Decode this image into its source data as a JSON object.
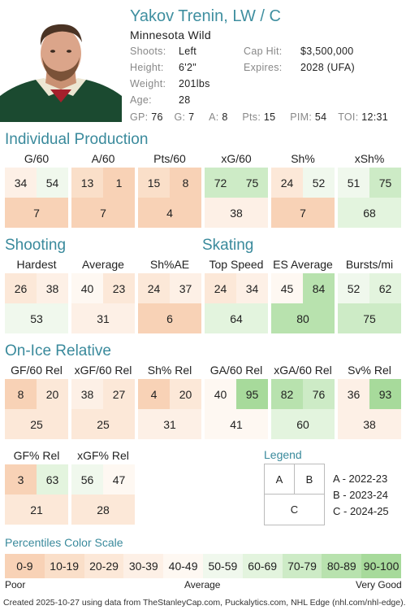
{
  "player": {
    "name": "Yakov Trenin, LW / C",
    "team": "Minnesota Wild",
    "shoots_label": "Shoots:",
    "shoots": "Left",
    "height_label": "Height:",
    "height": "6'2\"",
    "weight_label": "Weight:",
    "weight": "201lbs",
    "age_label": "Age:",
    "age": "28",
    "cap_label": "Cap Hit:",
    "cap": "$3,500,000",
    "expires_label": "Expires:",
    "expires": "2028 (UFA)",
    "gp_label": "GP:",
    "gp": "76",
    "g_label": "G:",
    "g": "7",
    "a_label": "A:",
    "a": "8",
    "pts_label": "Pts:",
    "pts": "15",
    "pim_label": "PIM:",
    "pim": "54",
    "toi_label": "TOI:",
    "toi": "12:31"
  },
  "sections": {
    "individual": "Individual Production",
    "shooting": "Shooting",
    "skating": "Skating",
    "onice": "On-Ice Relative"
  },
  "color_scale": [
    "#f8d2b6",
    "#fadfc9",
    "#fce8d8",
    "#fdf0e6",
    "#fef8f2",
    "#f0f8ed",
    "#e3f4de",
    "#cdebc6",
    "#b8e2ae",
    "#a7da9b"
  ],
  "metrics": [
    {
      "label": "G/60",
      "a": 34,
      "b": 54,
      "c": 7
    },
    {
      "label": "A/60",
      "a": 13,
      "b": 1,
      "c": 7
    },
    {
      "label": "Pts/60",
      "a": 15,
      "b": 8,
      "c": 4
    },
    {
      "label": "xG/60",
      "a": 72,
      "b": 75,
      "c": 38
    },
    {
      "label": "Sh%",
      "a": 24,
      "b": 52,
      "c": 7
    },
    {
      "label": "xSh%",
      "a": 51,
      "b": 75,
      "c": 68
    },
    {
      "label": "Hardest",
      "a": 26,
      "b": 38,
      "c": 53
    },
    {
      "label": "Average",
      "a": 40,
      "b": 23,
      "c": 31
    },
    {
      "label": "Sh%AE",
      "a": 24,
      "b": 37,
      "c": 6
    },
    {
      "label": "Top Speed",
      "a": 24,
      "b": 34,
      "c": 64
    },
    {
      "label": "ES Average",
      "a": 45,
      "b": 84,
      "c": 80
    },
    {
      "label": "Bursts/mi",
      "a": 52,
      "b": 62,
      "c": 75
    },
    {
      "label": "GF/60 Rel",
      "a": 8,
      "b": 20,
      "c": 25
    },
    {
      "label": "xGF/60 Rel",
      "a": 38,
      "b": 27,
      "c": 25
    },
    {
      "label": "Sh% Rel",
      "a": 4,
      "b": 20,
      "c": 31
    },
    {
      "label": "GA/60 Rel",
      "a": 40,
      "b": 95,
      "c": 41
    },
    {
      "label": "xGA/60 Rel",
      "a": 82,
      "b": 76,
      "c": 60
    },
    {
      "label": "Sv% Rel",
      "a": 36,
      "b": 93,
      "c": 38
    },
    {
      "label": "GF% Rel",
      "a": 3,
      "b": 63,
      "c": 21
    },
    {
      "label": "xGF% Rel",
      "a": 56,
      "b": 47,
      "c": 28
    }
  ],
  "legend": {
    "title": "Legend",
    "box_a": "A",
    "box_b": "B",
    "box_c": "C",
    "line_a": "A - 2022-23",
    "line_b": "B - 2023-24",
    "line_c": "C - 2024-25"
  },
  "scale": {
    "title": "Percentiles Color Scale",
    "bins": [
      "0-9",
      "10-19",
      "20-29",
      "30-39",
      "40-49",
      "50-59",
      "60-69",
      "70-79",
      "80-89",
      "90-100"
    ],
    "poor": "Poor",
    "average": "Average",
    "very_good": "Very Good"
  },
  "footer": "Created 2025-10-27 using data from TheStanleyCap.com, Puckalytics.com, NHL Edge (nhl.com/nhl-edge)."
}
